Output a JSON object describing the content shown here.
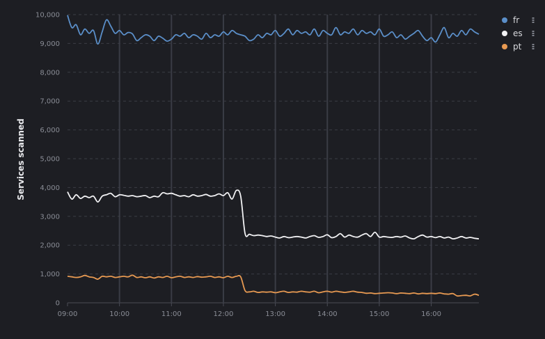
{
  "chart_data": {
    "type": "line",
    "title": "",
    "xlabel": "",
    "ylabel": "Services scanned",
    "x_range": [
      "09:00",
      "16:55"
    ],
    "x_tick_labels": [
      "09:00",
      "10:00",
      "11:00",
      "12:00",
      "13:00",
      "14:00",
      "15:00",
      "16:00"
    ],
    "y_tick_labels": [
      "0",
      "1,000",
      "2,000",
      "3,000",
      "4,000",
      "5,000",
      "6,000",
      "7,000",
      "8,000",
      "9,000",
      "10,000"
    ],
    "ylim": [
      0,
      10000
    ],
    "grid": {
      "horizontal": "dashed",
      "vertical": "solid"
    },
    "legend_position": "top-right",
    "series": [
      {
        "name": "fr",
        "color": "#5b8fc9",
        "points": [
          [
            "09:00",
            9980
          ],
          [
            "09:05",
            9550
          ],
          [
            "09:10",
            9650
          ],
          [
            "09:15",
            9300
          ],
          [
            "09:20",
            9500
          ],
          [
            "09:25",
            9350
          ],
          [
            "09:30",
            9450
          ],
          [
            "09:35",
            8980
          ],
          [
            "09:40",
            9400
          ],
          [
            "09:45",
            9820
          ],
          [
            "09:50",
            9600
          ],
          [
            "09:55",
            9350
          ],
          [
            "10:00",
            9450
          ],
          [
            "10:05",
            9300
          ],
          [
            "10:10",
            9380
          ],
          [
            "10:15",
            9330
          ],
          [
            "10:20",
            9100
          ],
          [
            "10:25",
            9200
          ],
          [
            "10:30",
            9300
          ],
          [
            "10:35",
            9250
          ],
          [
            "10:40",
            9100
          ],
          [
            "10:45",
            9250
          ],
          [
            "10:50",
            9180
          ],
          [
            "10:55",
            9080
          ],
          [
            "11:00",
            9150
          ],
          [
            "11:05",
            9300
          ],
          [
            "11:10",
            9250
          ],
          [
            "11:15",
            9350
          ],
          [
            "11:20",
            9200
          ],
          [
            "11:25",
            9300
          ],
          [
            "11:30",
            9250
          ],
          [
            "11:35",
            9150
          ],
          [
            "11:40",
            9350
          ],
          [
            "11:45",
            9200
          ],
          [
            "11:50",
            9300
          ],
          [
            "11:55",
            9250
          ],
          [
            "12:00",
            9400
          ],
          [
            "12:05",
            9300
          ],
          [
            "12:10",
            9450
          ],
          [
            "12:15",
            9350
          ],
          [
            "12:20",
            9300
          ],
          [
            "12:25",
            9250
          ],
          [
            "12:30",
            9100
          ],
          [
            "12:35",
            9150
          ],
          [
            "12:40",
            9300
          ],
          [
            "12:45",
            9200
          ],
          [
            "12:50",
            9350
          ],
          [
            "12:55",
            9300
          ],
          [
            "13:00",
            9450
          ],
          [
            "13:05",
            9250
          ],
          [
            "13:10",
            9350
          ],
          [
            "13:15",
            9500
          ],
          [
            "13:20",
            9300
          ],
          [
            "13:25",
            9450
          ],
          [
            "13:30",
            9350
          ],
          [
            "13:35",
            9400
          ],
          [
            "13:40",
            9300
          ],
          [
            "13:45",
            9500
          ],
          [
            "13:50",
            9250
          ],
          [
            "13:55",
            9450
          ],
          [
            "14:00",
            9350
          ],
          [
            "14:05",
            9300
          ],
          [
            "14:10",
            9550
          ],
          [
            "14:15",
            9300
          ],
          [
            "14:20",
            9400
          ],
          [
            "14:25",
            9350
          ],
          [
            "14:30",
            9500
          ],
          [
            "14:35",
            9300
          ],
          [
            "14:40",
            9450
          ],
          [
            "14:45",
            9350
          ],
          [
            "14:50",
            9400
          ],
          [
            "14:55",
            9300
          ],
          [
            "15:00",
            9500
          ],
          [
            "15:05",
            9250
          ],
          [
            "15:10",
            9300
          ],
          [
            "15:15",
            9400
          ],
          [
            "15:20",
            9200
          ],
          [
            "15:25",
            9300
          ],
          [
            "15:30",
            9150
          ],
          [
            "15:35",
            9250
          ],
          [
            "15:40",
            9350
          ],
          [
            "15:45",
            9450
          ],
          [
            "15:50",
            9250
          ],
          [
            "15:55",
            9100
          ],
          [
            "16:00",
            9200
          ],
          [
            "16:05",
            9050
          ],
          [
            "16:10",
            9300
          ],
          [
            "16:15",
            9550
          ],
          [
            "16:20",
            9200
          ],
          [
            "16:25",
            9350
          ],
          [
            "16:30",
            9250
          ],
          [
            "16:35",
            9450
          ],
          [
            "16:40",
            9300
          ],
          [
            "16:45",
            9500
          ],
          [
            "16:50",
            9400
          ],
          [
            "16:55",
            9320
          ]
        ]
      },
      {
        "name": "es",
        "color": "#f2f2f4",
        "points": [
          [
            "09:00",
            3850
          ],
          [
            "09:05",
            3600
          ],
          [
            "09:10",
            3750
          ],
          [
            "09:15",
            3620
          ],
          [
            "09:20",
            3700
          ],
          [
            "09:25",
            3650
          ],
          [
            "09:30",
            3700
          ],
          [
            "09:35",
            3500
          ],
          [
            "09:40",
            3700
          ],
          [
            "09:45",
            3750
          ],
          [
            "09:50",
            3800
          ],
          [
            "09:55",
            3680
          ],
          [
            "10:00",
            3750
          ],
          [
            "10:05",
            3730
          ],
          [
            "10:10",
            3700
          ],
          [
            "10:15",
            3720
          ],
          [
            "10:20",
            3680
          ],
          [
            "10:25",
            3700
          ],
          [
            "10:30",
            3720
          ],
          [
            "10:35",
            3650
          ],
          [
            "10:40",
            3700
          ],
          [
            "10:45",
            3680
          ],
          [
            "10:50",
            3820
          ],
          [
            "10:55",
            3780
          ],
          [
            "11:00",
            3800
          ],
          [
            "11:05",
            3750
          ],
          [
            "11:10",
            3700
          ],
          [
            "11:15",
            3720
          ],
          [
            "11:20",
            3680
          ],
          [
            "11:25",
            3750
          ],
          [
            "11:30",
            3700
          ],
          [
            "11:35",
            3720
          ],
          [
            "11:40",
            3760
          ],
          [
            "11:45",
            3700
          ],
          [
            "11:50",
            3720
          ],
          [
            "11:55",
            3780
          ],
          [
            "12:00",
            3720
          ],
          [
            "12:05",
            3820
          ],
          [
            "12:10",
            3600
          ],
          [
            "12:15",
            3900
          ],
          [
            "12:20",
            3700
          ],
          [
            "12:25",
            2400
          ],
          [
            "12:30",
            2380
          ],
          [
            "12:35",
            2330
          ],
          [
            "12:40",
            2350
          ],
          [
            "12:45",
            2330
          ],
          [
            "12:50",
            2300
          ],
          [
            "12:55",
            2320
          ],
          [
            "13:00",
            2280
          ],
          [
            "13:05",
            2250
          ],
          [
            "13:10",
            2300
          ],
          [
            "13:15",
            2260
          ],
          [
            "13:20",
            2280
          ],
          [
            "13:25",
            2300
          ],
          [
            "13:30",
            2280
          ],
          [
            "13:35",
            2250
          ],
          [
            "13:40",
            2300
          ],
          [
            "13:45",
            2330
          ],
          [
            "13:50",
            2270
          ],
          [
            "13:55",
            2300
          ],
          [
            "14:00",
            2360
          ],
          [
            "14:05",
            2260
          ],
          [
            "14:10",
            2300
          ],
          [
            "14:15",
            2400
          ],
          [
            "14:20",
            2280
          ],
          [
            "14:25",
            2350
          ],
          [
            "14:30",
            2300
          ],
          [
            "14:35",
            2280
          ],
          [
            "14:40",
            2350
          ],
          [
            "14:45",
            2400
          ],
          [
            "14:50",
            2300
          ],
          [
            "14:55",
            2450
          ],
          [
            "15:00",
            2280
          ],
          [
            "15:05",
            2300
          ],
          [
            "15:10",
            2280
          ],
          [
            "15:15",
            2270
          ],
          [
            "15:20",
            2300
          ],
          [
            "15:25",
            2280
          ],
          [
            "15:30",
            2320
          ],
          [
            "15:35",
            2250
          ],
          [
            "15:40",
            2220
          ],
          [
            "15:45",
            2300
          ],
          [
            "15:50",
            2350
          ],
          [
            "15:55",
            2280
          ],
          [
            "16:00",
            2300
          ],
          [
            "16:05",
            2260
          ],
          [
            "16:10",
            2300
          ],
          [
            "16:15",
            2250
          ],
          [
            "16:20",
            2280
          ],
          [
            "16:25",
            2220
          ],
          [
            "16:30",
            2250
          ],
          [
            "16:35",
            2300
          ],
          [
            "16:40",
            2250
          ],
          [
            "16:45",
            2270
          ],
          [
            "16:50",
            2240
          ],
          [
            "16:55",
            2220
          ]
        ]
      },
      {
        "name": "pt",
        "color": "#e89a52",
        "points": [
          [
            "09:00",
            920
          ],
          [
            "09:05",
            900
          ],
          [
            "09:10",
            880
          ],
          [
            "09:15",
            900
          ],
          [
            "09:20",
            950
          ],
          [
            "09:25",
            900
          ],
          [
            "09:30",
            880
          ],
          [
            "09:35",
            820
          ],
          [
            "09:40",
            920
          ],
          [
            "09:45",
            900
          ],
          [
            "09:50",
            920
          ],
          [
            "09:55",
            880
          ],
          [
            "10:00",
            900
          ],
          [
            "10:05",
            920
          ],
          [
            "10:10",
            900
          ],
          [
            "10:15",
            960
          ],
          [
            "10:20",
            880
          ],
          [
            "10:25",
            900
          ],
          [
            "10:30",
            870
          ],
          [
            "10:35",
            900
          ],
          [
            "10:40",
            860
          ],
          [
            "10:45",
            900
          ],
          [
            "10:50",
            880
          ],
          [
            "10:55",
            920
          ],
          [
            "11:00",
            870
          ],
          [
            "11:05",
            900
          ],
          [
            "11:10",
            920
          ],
          [
            "11:15",
            880
          ],
          [
            "11:20",
            900
          ],
          [
            "11:25",
            880
          ],
          [
            "11:30",
            910
          ],
          [
            "11:35",
            890
          ],
          [
            "11:40",
            900
          ],
          [
            "11:45",
            920
          ],
          [
            "11:50",
            880
          ],
          [
            "11:55",
            900
          ],
          [
            "12:00",
            870
          ],
          [
            "12:05",
            920
          ],
          [
            "12:10",
            880
          ],
          [
            "12:15",
            920
          ],
          [
            "12:20",
            900
          ],
          [
            "12:25",
            420
          ],
          [
            "12:30",
            380
          ],
          [
            "12:35",
            400
          ],
          [
            "12:40",
            360
          ],
          [
            "12:45",
            380
          ],
          [
            "12:50",
            370
          ],
          [
            "12:55",
            380
          ],
          [
            "13:00",
            350
          ],
          [
            "13:05",
            380
          ],
          [
            "13:10",
            400
          ],
          [
            "13:15",
            360
          ],
          [
            "13:20",
            380
          ],
          [
            "13:25",
            370
          ],
          [
            "13:30",
            400
          ],
          [
            "13:35",
            380
          ],
          [
            "13:40",
            370
          ],
          [
            "13:45",
            400
          ],
          [
            "13:50",
            350
          ],
          [
            "13:55",
            380
          ],
          [
            "14:00",
            400
          ],
          [
            "14:05",
            370
          ],
          [
            "14:10",
            400
          ],
          [
            "14:15",
            380
          ],
          [
            "14:20",
            360
          ],
          [
            "14:25",
            380
          ],
          [
            "14:30",
            400
          ],
          [
            "14:35",
            370
          ],
          [
            "14:40",
            360
          ],
          [
            "14:45",
            330
          ],
          [
            "14:50",
            340
          ],
          [
            "14:55",
            320
          ],
          [
            "15:00",
            330
          ],
          [
            "15:05",
            340
          ],
          [
            "15:10",
            350
          ],
          [
            "15:15",
            340
          ],
          [
            "15:20",
            320
          ],
          [
            "15:25",
            340
          ],
          [
            "15:30",
            330
          ],
          [
            "15:35",
            320
          ],
          [
            "15:40",
            340
          ],
          [
            "15:45",
            310
          ],
          [
            "15:50",
            330
          ],
          [
            "15:55",
            320
          ],
          [
            "16:00",
            330
          ],
          [
            "16:05",
            320
          ],
          [
            "16:10",
            340
          ],
          [
            "16:15",
            310
          ],
          [
            "16:20",
            300
          ],
          [
            "16:25",
            320
          ],
          [
            "16:30",
            240
          ],
          [
            "16:35",
            250
          ],
          [
            "16:40",
            260
          ],
          [
            "16:45",
            240
          ],
          [
            "16:50",
            300
          ],
          [
            "16:55",
            260
          ]
        ]
      }
    ]
  }
}
